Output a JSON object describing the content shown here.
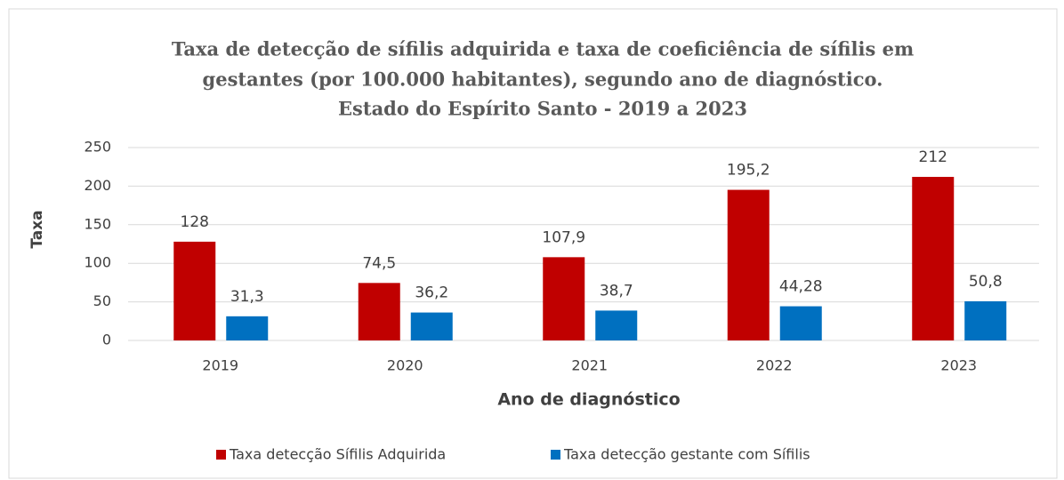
{
  "chart_data": {
    "type": "bar",
    "title": [
      "Taxa de detecção de sífilis  adquirida e taxa de coeficiência de sífilis  em",
      "gestantes (por 100.000 habitantes), segundo ano de diagnóstico.",
      "Estado do Espírito Santo - 2019 a 2023"
    ],
    "x_label": "Ano de diagnóstico",
    "y_label": "Taxa",
    "categories": [
      "2019",
      "2020",
      "2021",
      "2022",
      "2023"
    ],
    "series": [
      {
        "name": "Taxa detecção Sífilis Adquirida",
        "color": "#c00000",
        "values": [
          128,
          74.5,
          107.9,
          195.2,
          212
        ],
        "value_labels": [
          "128",
          "74,5",
          "107,9",
          "195,2",
          "212"
        ]
      },
      {
        "name": "Taxa detecção gestante com Sífilis",
        "color": "#0070c0",
        "values": [
          31.3,
          36.2,
          38.7,
          44.28,
          50.8
        ],
        "value_labels": [
          "31,3",
          "36,2",
          "38,7",
          "44,28",
          "50,8"
        ]
      }
    ],
    "ylim": [
      0,
      250
    ],
    "yticks": [
      0,
      50,
      100,
      150,
      200,
      250
    ],
    "grid": true,
    "legend": "bottom"
  }
}
